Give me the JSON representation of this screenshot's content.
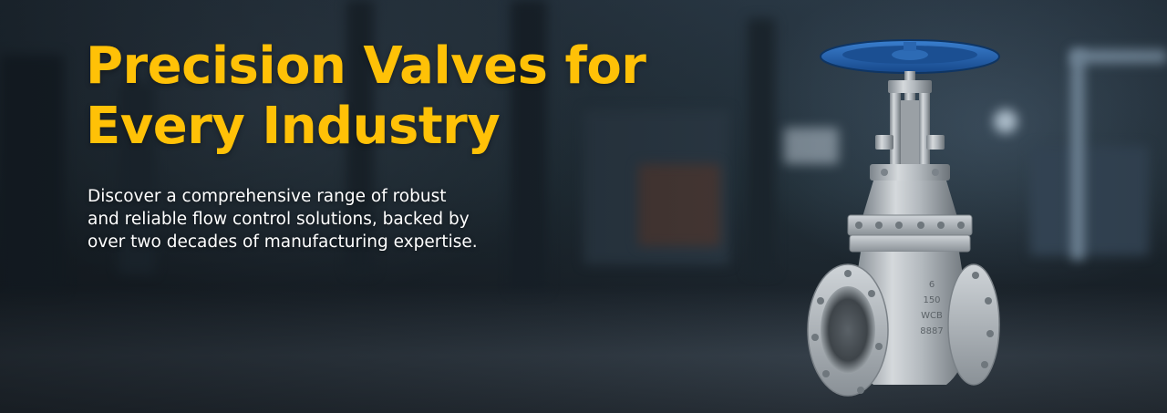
{
  "hero": {
    "headline_line1": "Precision Valves for",
    "headline_line2": "Every Industry",
    "subtext_line1": "Discover a comprehensive range of robust",
    "subtext_line2": "and reliable flow control solutions, backed by",
    "subtext_line3": "over two decades of manufacturing expertise."
  },
  "valve_markings": {
    "line1": "6",
    "line2": "150",
    "line3": "WCB",
    "line4": "8887"
  },
  "colors": {
    "accent": "#ffc107",
    "handwheel": "#1f5fa8",
    "steel": "#b9bec3"
  },
  "icons": {
    "background": "factory-background-image",
    "product": "gate-valve-image"
  }
}
